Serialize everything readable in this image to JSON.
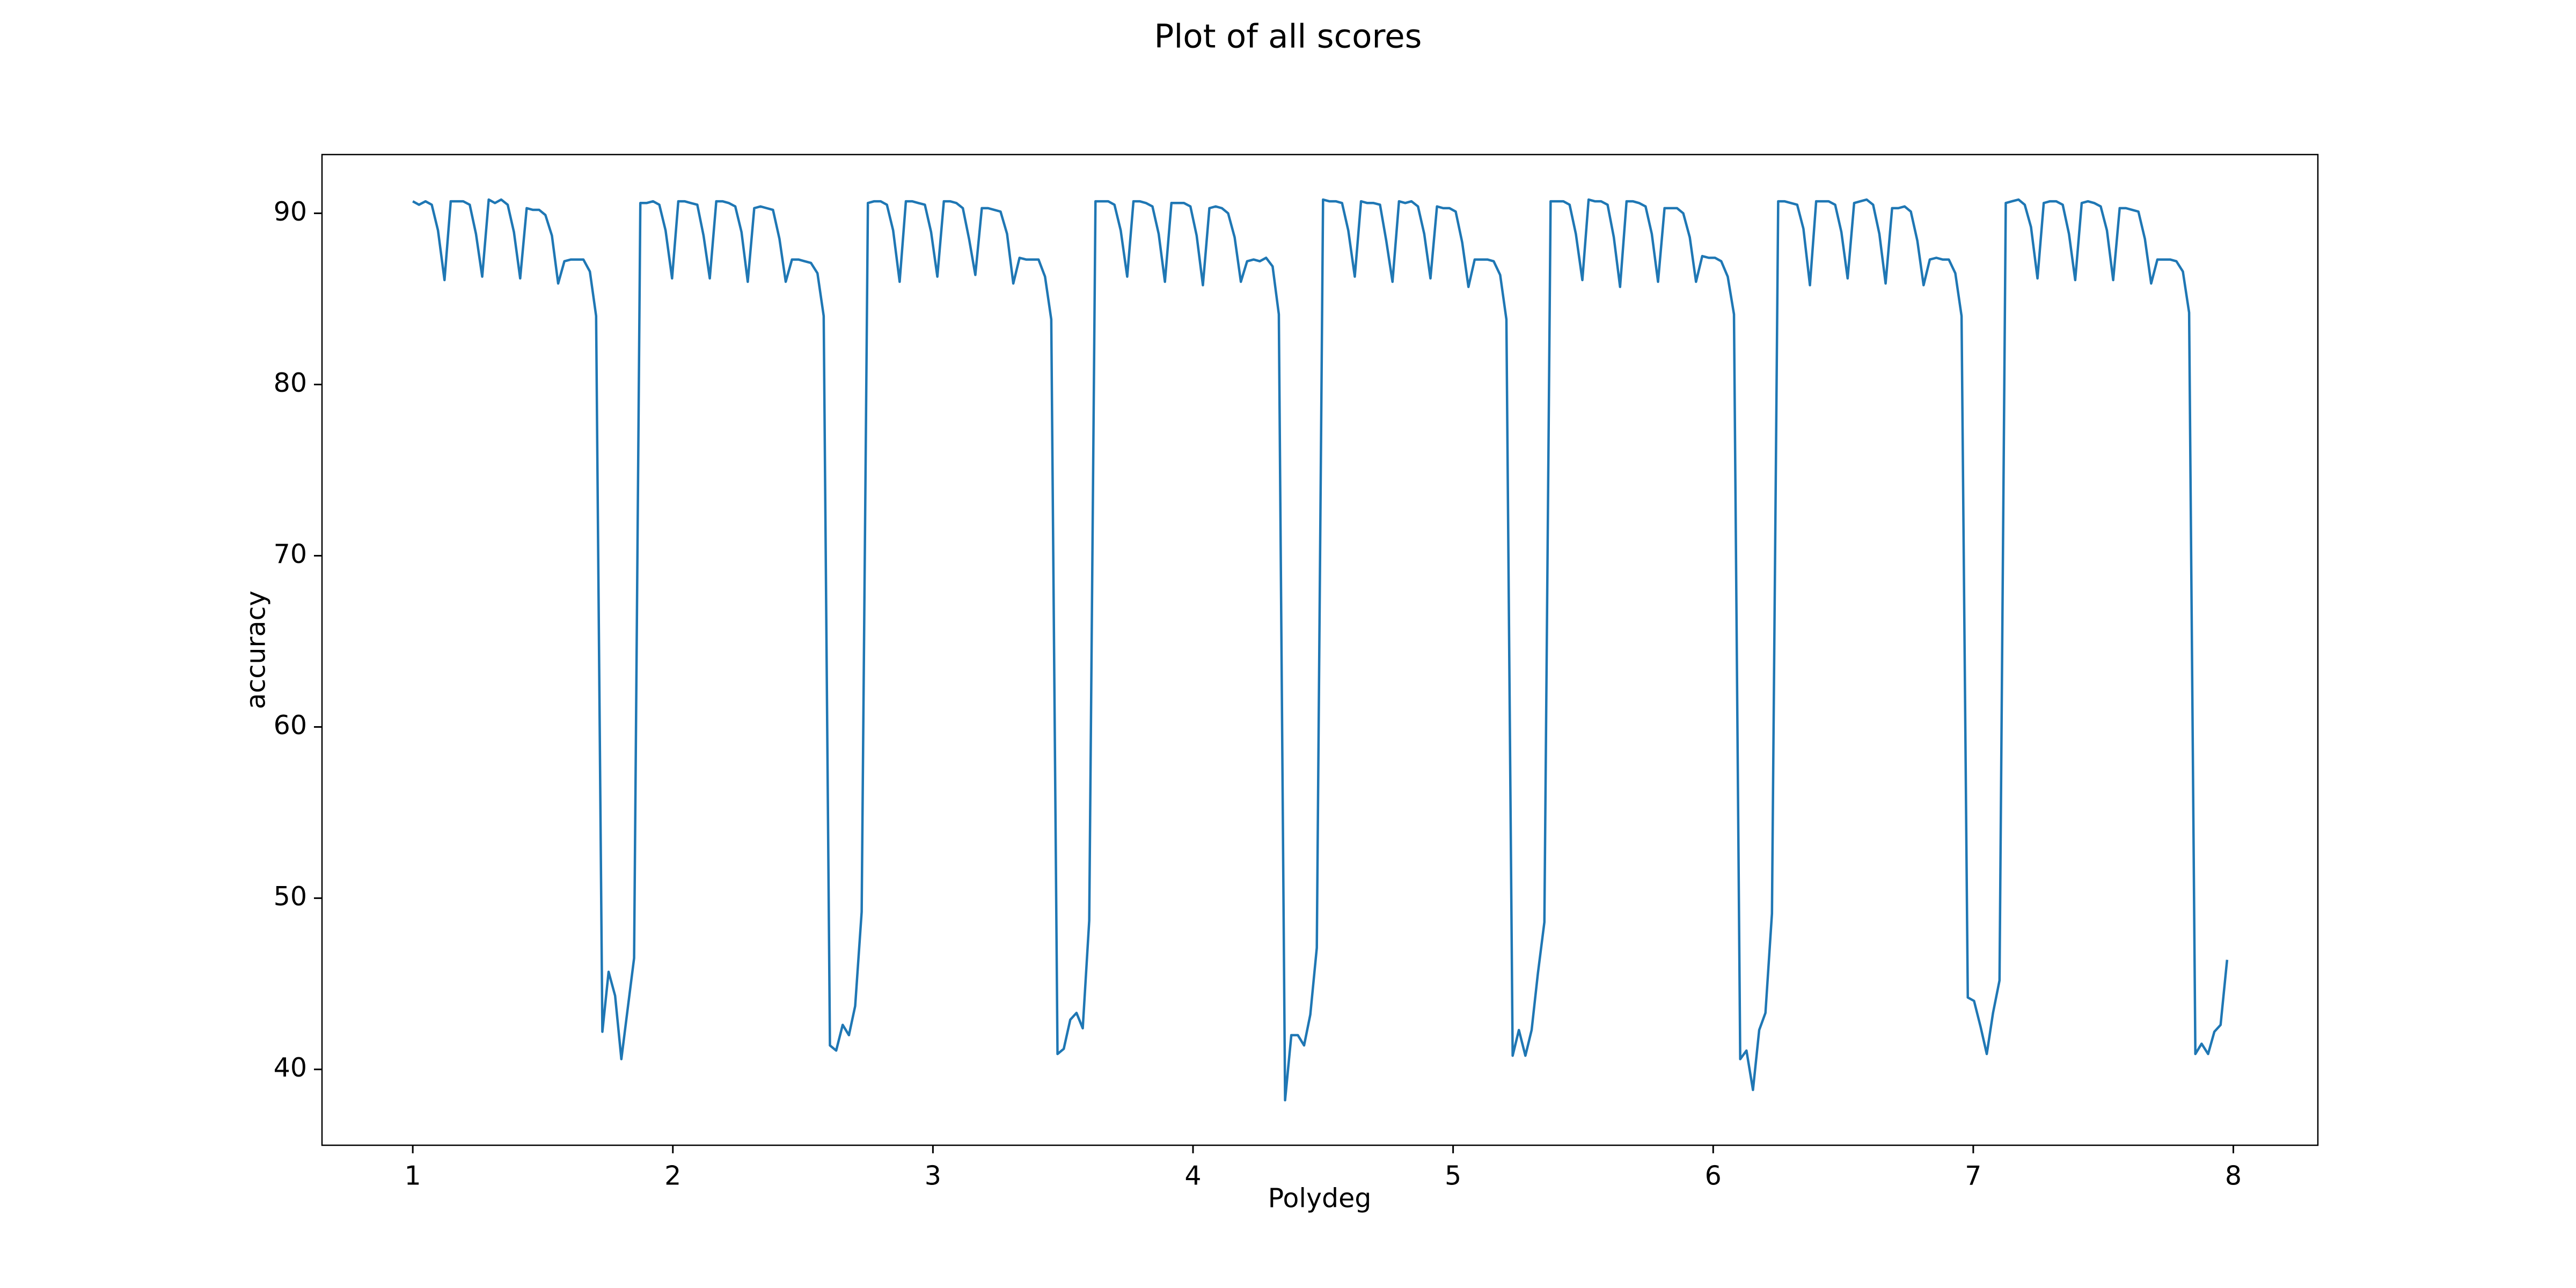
{
  "chart_data": {
    "type": "line",
    "title": "Plot of all scores",
    "xlabel": "Polydeg",
    "ylabel": "accuracy",
    "color": "#1f77b4",
    "x": [
      1,
      1.024,
      1.049,
      1.073,
      1.097,
      1.122,
      1.146,
      1.17,
      1.194,
      1.219,
      1.243,
      1.267,
      1.292,
      1.316,
      1.34,
      1.365,
      1.389,
      1.413,
      1.438,
      1.462,
      1.486,
      1.51,
      1.535,
      1.559,
      1.583,
      1.608,
      1.632,
      1.656,
      1.681,
      1.705,
      1.729,
      1.753,
      1.778,
      1.802,
      1.826,
      1.851,
      1.875,
      1.899,
      1.924,
      1.948,
      1.972,
      1.997,
      2.021,
      2.045,
      2.069,
      2.094,
      2.118,
      2.142,
      2.167,
      2.191,
      2.215,
      2.24,
      2.264,
      2.288,
      2.313,
      2.337,
      2.361,
      2.385,
      2.41,
      2.434,
      2.458,
      2.483,
      2.507,
      2.531,
      2.556,
      2.58,
      2.604,
      2.628,
      2.653,
      2.677,
      2.701,
      2.726,
      2.75,
      2.774,
      2.799,
      2.823,
      2.847,
      2.872,
      2.896,
      2.92,
      2.944,
      2.969,
      2.993,
      3.017,
      3.042,
      3.066,
      3.09,
      3.115,
      3.139,
      3.163,
      3.188,
      3.212,
      3.236,
      3.26,
      3.285,
      3.309,
      3.333,
      3.358,
      3.382,
      3.406,
      3.431,
      3.455,
      3.479,
      3.503,
      3.528,
      3.552,
      3.576,
      3.601,
      3.625,
      3.649,
      3.674,
      3.698,
      3.722,
      3.747,
      3.771,
      3.795,
      3.819,
      3.844,
      3.868,
      3.892,
      3.917,
      3.941,
      3.965,
      3.99,
      4.014,
      4.038,
      4.063,
      4.087,
      4.111,
      4.135,
      4.16,
      4.184,
      4.208,
      4.233,
      4.257,
      4.281,
      4.306,
      4.33,
      4.354,
      4.378,
      4.403,
      4.427,
      4.451,
      4.476,
      4.5,
      4.524,
      4.549,
      4.573,
      4.597,
      4.622,
      4.646,
      4.67,
      4.694,
      4.719,
      4.743,
      4.767,
      4.792,
      4.816,
      4.84,
      4.865,
      4.889,
      4.913,
      4.938,
      4.962,
      4.986,
      5.01,
      5.035,
      5.059,
      5.083,
      5.108,
      5.132,
      5.156,
      5.181,
      5.205,
      5.229,
      5.253,
      5.278,
      5.302,
      5.326,
      5.351,
      5.375,
      5.399,
      5.424,
      5.448,
      5.472,
      5.497,
      5.521,
      5.545,
      5.569,
      5.594,
      5.618,
      5.642,
      5.667,
      5.691,
      5.715,
      5.74,
      5.764,
      5.788,
      5.813,
      5.837,
      5.861,
      5.885,
      5.91,
      5.934,
      5.958,
      5.983,
      6.007,
      6.031,
      6.056,
      6.08,
      6.104,
      6.128,
      6.153,
      6.177,
      6.201,
      6.226,
      6.25,
      6.274,
      6.299,
      6.323,
      6.347,
      6.372,
      6.396,
      6.42,
      6.444,
      6.469,
      6.493,
      6.517,
      6.542,
      6.566,
      6.59,
      6.615,
      6.639,
      6.663,
      6.688,
      6.712,
      6.736,
      6.76,
      6.785,
      6.809,
      6.833,
      6.858,
      6.882,
      6.906,
      6.931,
      6.955,
      6.979,
      7.003,
      7.028,
      7.052,
      7.076,
      7.101,
      7.125,
      7.149,
      7.174,
      7.198,
      7.222,
      7.247,
      7.271,
      7.295,
      7.319,
      7.344,
      7.368,
      7.392,
      7.417,
      7.441,
      7.465,
      7.49,
      7.514,
      7.538,
      7.563,
      7.587,
      7.611,
      7.635,
      7.66,
      7.684,
      7.708,
      7.733,
      7.757,
      7.781,
      7.806,
      7.83,
      7.854,
      7.878,
      7.903,
      7.927,
      7.951,
      7.976
    ],
    "values": [
      90.7,
      90.5,
      90.7,
      90.5,
      89.0,
      86.1,
      90.7,
      90.7,
      90.7,
      90.5,
      88.8,
      86.3,
      90.8,
      90.6,
      90.8,
      90.5,
      88.9,
      86.2,
      90.3,
      90.2,
      90.2,
      89.9,
      88.7,
      85.9,
      87.2,
      87.3,
      87.3,
      87.3,
      86.6,
      84.0,
      42.2,
      45.7,
      44.3,
      40.6,
      43.5,
      46.5,
      90.6,
      90.6,
      90.7,
      90.5,
      89.0,
      86.2,
      90.7,
      90.7,
      90.6,
      90.5,
      88.7,
      86.2,
      90.7,
      90.7,
      90.6,
      90.4,
      88.9,
      86.0,
      90.3,
      90.4,
      90.3,
      90.2,
      88.5,
      86.0,
      87.3,
      87.3,
      87.2,
      87.1,
      86.5,
      84.0,
      41.4,
      41.1,
      42.6,
      42.0,
      43.7,
      49.2,
      90.6,
      90.7,
      90.7,
      90.5,
      89.0,
      86.0,
      90.7,
      90.7,
      90.6,
      90.5,
      88.9,
      86.3,
      90.7,
      90.7,
      90.6,
      90.3,
      88.5,
      86.4,
      90.3,
      90.3,
      90.2,
      90.1,
      88.8,
      85.9,
      87.4,
      87.3,
      87.3,
      87.3,
      86.3,
      83.8,
      40.9,
      41.2,
      42.9,
      43.3,
      42.4,
      48.7,
      90.7,
      90.7,
      90.7,
      90.5,
      89.0,
      86.3,
      90.7,
      90.7,
      90.6,
      90.4,
      88.8,
      86.0,
      90.6,
      90.6,
      90.6,
      90.4,
      88.7,
      85.8,
      90.3,
      90.4,
      90.3,
      90.0,
      88.6,
      86.0,
      87.2,
      87.3,
      87.2,
      87.4,
      86.9,
      84.1,
      38.2,
      42.0,
      42.0,
      41.4,
      43.2,
      47.1,
      90.8,
      90.7,
      90.7,
      90.6,
      89.0,
      86.3,
      90.7,
      90.6,
      90.6,
      90.5,
      88.4,
      86.0,
      90.7,
      90.6,
      90.7,
      90.4,
      88.8,
      86.2,
      90.4,
      90.3,
      90.3,
      90.1,
      88.3,
      85.7,
      87.3,
      87.3,
      87.3,
      87.2,
      86.4,
      83.8,
      40.8,
      42.3,
      40.8,
      42.3,
      45.6,
      48.6,
      90.7,
      90.7,
      90.7,
      90.5,
      88.8,
      86.1,
      90.8,
      90.7,
      90.7,
      90.5,
      88.6,
      85.7,
      90.7,
      90.7,
      90.6,
      90.4,
      88.8,
      86.0,
      90.3,
      90.3,
      90.3,
      90.0,
      88.6,
      86.0,
      87.5,
      87.4,
      87.4,
      87.2,
      86.3,
      84.1,
      40.6,
      41.1,
      38.8,
      42.3,
      43.3,
      49.1,
      90.7,
      90.7,
      90.6,
      90.5,
      89.1,
      85.8,
      90.7,
      90.7,
      90.7,
      90.5,
      88.9,
      86.2,
      90.6,
      90.7,
      90.8,
      90.5,
      88.8,
      85.9,
      90.3,
      90.3,
      90.4,
      90.1,
      88.4,
      85.8,
      87.3,
      87.4,
      87.3,
      87.3,
      86.5,
      84.0,
      44.2,
      44.0,
      42.5,
      40.9,
      43.3,
      45.2,
      90.6,
      90.7,
      90.8,
      90.5,
      89.2,
      86.2,
      90.6,
      90.7,
      90.7,
      90.5,
      88.8,
      86.1,
      90.6,
      90.7,
      90.6,
      90.4,
      89.0,
      86.1,
      90.3,
      90.3,
      90.2,
      90.1,
      88.5,
      85.9,
      87.3,
      87.3,
      87.3,
      87.2,
      86.6,
      84.2,
      40.9,
      41.5,
      40.9,
      42.2,
      42.6,
      46.4
    ],
    "xlim": [
      0.651,
      8.325
    ],
    "xticks": [
      1,
      2,
      3,
      4,
      5,
      6,
      7,
      8
    ],
    "ylim": [
      35.57,
      93.43
    ],
    "yticks": [
      40,
      50,
      60,
      70,
      80,
      90
    ]
  }
}
